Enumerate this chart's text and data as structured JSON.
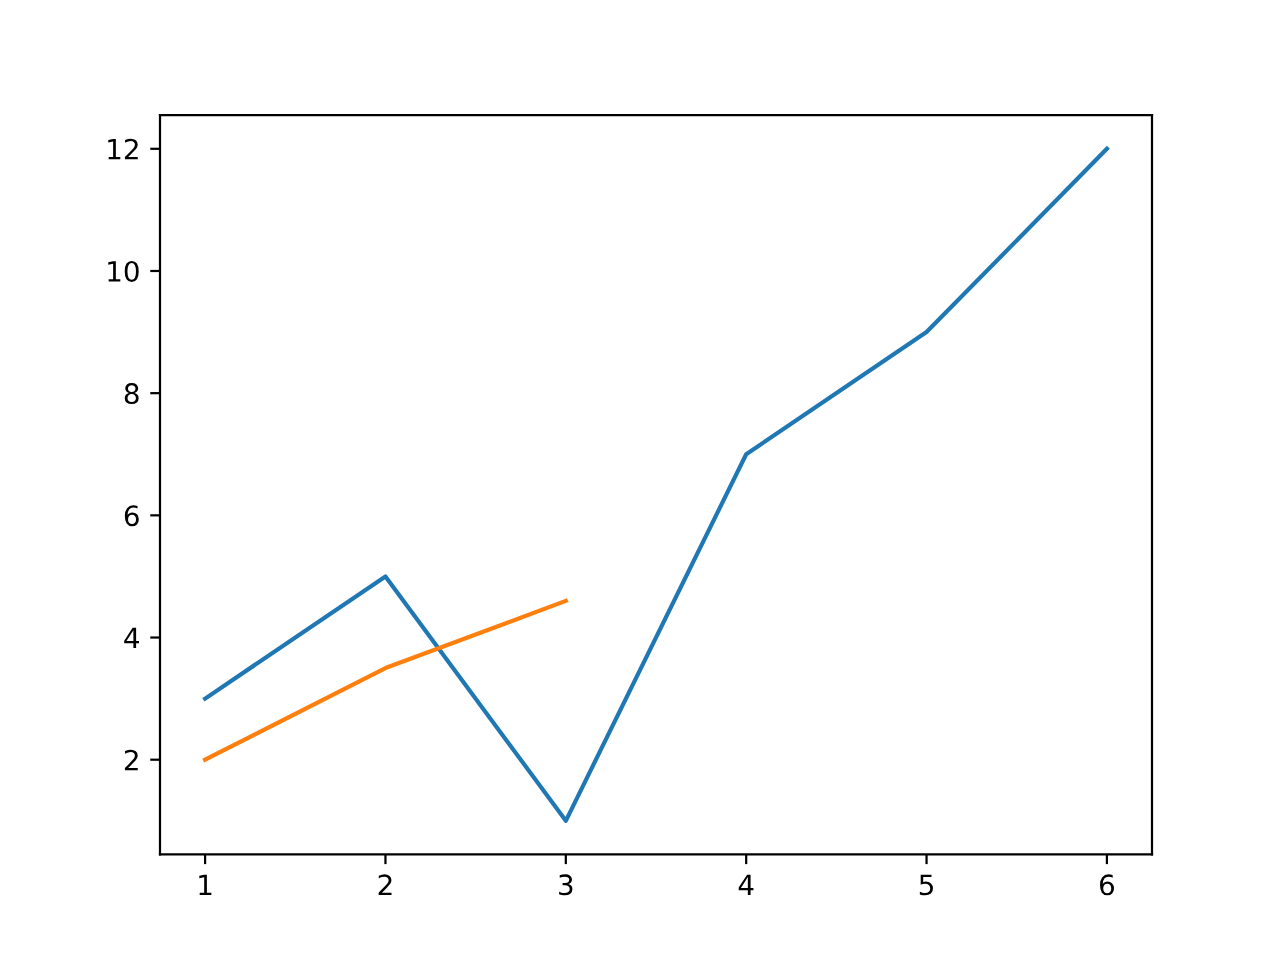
{
  "chart_data": {
    "type": "line",
    "series": [
      {
        "color": "#1f77b4",
        "x": [
          1,
          2,
          3,
          4,
          5,
          6
        ],
        "values": [
          3,
          5,
          1,
          7,
          9,
          12
        ]
      },
      {
        "color": "#ff7f0e",
        "x": [
          1,
          2,
          3
        ],
        "values": [
          2,
          3.5,
          4.6
        ]
      }
    ],
    "xlim": [
      0.75,
      6.25
    ],
    "ylim": [
      0.45,
      12.55
    ],
    "xticks": [
      1,
      2,
      3,
      4,
      5,
      6
    ],
    "yticks": [
      2,
      4,
      6,
      8,
      10,
      12
    ],
    "grid": false,
    "marker": "none",
    "line_style": "solid"
  }
}
